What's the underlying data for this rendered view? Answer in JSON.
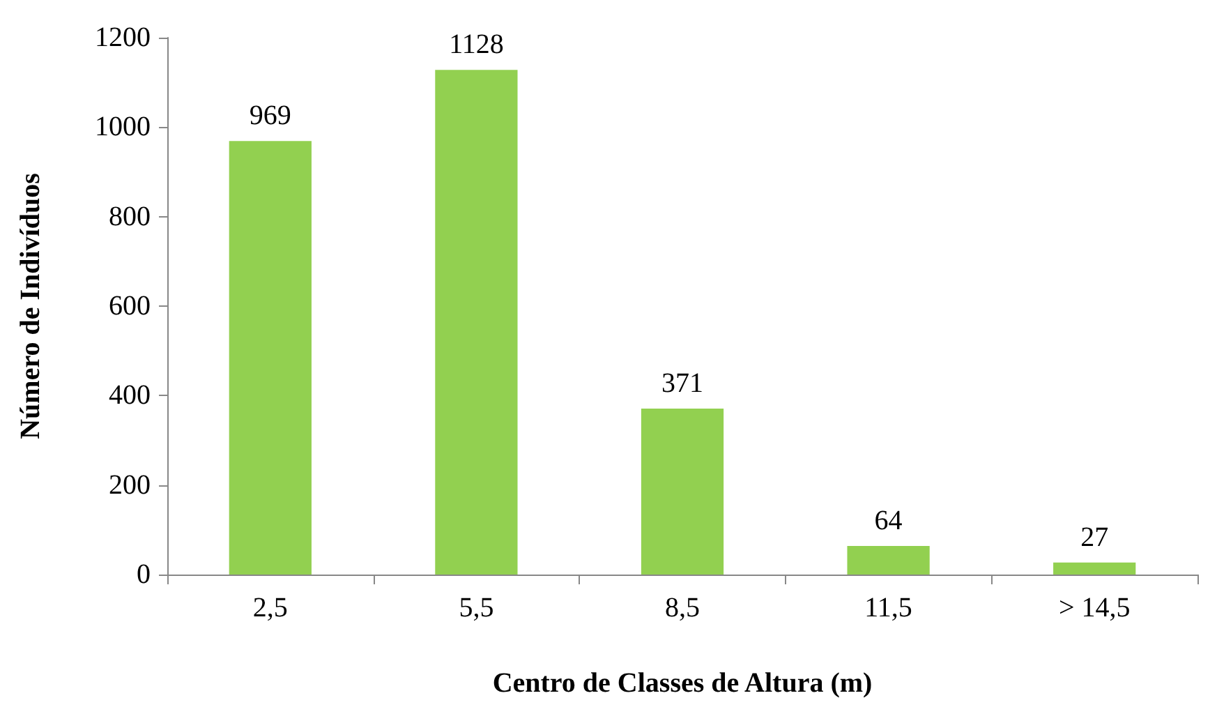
{
  "chart_data": {
    "type": "bar",
    "xlabel": "Centro de Classes de Altura (m)",
    "ylabel": "Número de Indivíduos",
    "categories": [
      "2,5",
      "5,5",
      "8,5",
      "11,5",
      "> 14,5"
    ],
    "values": [
      969,
      1128,
      371,
      64,
      27
    ],
    "color": "#92d050",
    "ylim": [
      0,
      1200
    ],
    "yticks": [
      0,
      200,
      400,
      600,
      800,
      1000,
      1200
    ],
    "grid": false,
    "data_labels": true
  }
}
